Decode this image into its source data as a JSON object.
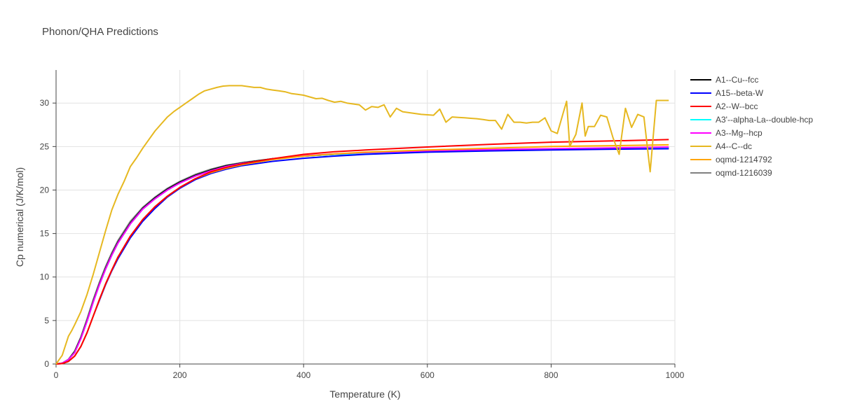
{
  "chart_data": {
    "type": "line",
    "title": "Phonon/QHA Predictions",
    "xlabel": "Temperature (K)",
    "ylabel": "Cp numerical (J/K/mol)",
    "xlim": [
      0,
      1000
    ],
    "ylim": [
      0,
      33.8
    ],
    "xticks": [
      0,
      200,
      400,
      600,
      800,
      1000
    ],
    "xtick_labels": [
      "0",
      "200",
      "400",
      "600",
      "800",
      "1000"
    ],
    "yticks": [
      0,
      5,
      10,
      15,
      20,
      25,
      30
    ],
    "ytick_labels": [
      "0",
      "5",
      "10",
      "15",
      "20",
      "25",
      "30"
    ],
    "grid": true,
    "legend_position": "right",
    "series": [
      {
        "name": "A1--Cu--fcc",
        "color": "#000000",
        "x": [
          0,
          10,
          20,
          30,
          40,
          50,
          60,
          70,
          80,
          90,
          100,
          120,
          140,
          160,
          180,
          200,
          225,
          250,
          275,
          300,
          350,
          400,
          450,
          500,
          600,
          700,
          800,
          900,
          990
        ],
        "y": [
          0,
          0.1,
          0.5,
          1.4,
          3.0,
          5.0,
          7.2,
          9.2,
          11.0,
          12.6,
          14.0,
          16.2,
          17.9,
          19.1,
          20.1,
          20.9,
          21.7,
          22.3,
          22.8,
          23.1,
          23.6,
          23.9,
          24.1,
          24.2,
          24.4,
          24.55,
          24.65,
          24.75,
          24.8
        ]
      },
      {
        "name": "A15--beta-W",
        "color": "#0000ff",
        "x": [
          0,
          10,
          20,
          30,
          40,
          50,
          60,
          70,
          80,
          90,
          100,
          120,
          140,
          160,
          180,
          200,
          225,
          250,
          275,
          300,
          350,
          400,
          450,
          500,
          600,
          700,
          800,
          900,
          990
        ],
        "y": [
          0,
          0.05,
          0.3,
          0.9,
          2.0,
          3.6,
          5.5,
          7.3,
          9.1,
          10.7,
          12.1,
          14.5,
          16.4,
          17.9,
          19.2,
          20.2,
          21.2,
          21.9,
          22.4,
          22.8,
          23.3,
          23.65,
          23.9,
          24.1,
          24.35,
          24.5,
          24.6,
          24.7,
          24.75
        ]
      },
      {
        "name": "A2--W--bcc",
        "color": "#ff0000",
        "x": [
          0,
          10,
          20,
          30,
          40,
          50,
          60,
          70,
          80,
          90,
          100,
          120,
          140,
          160,
          180,
          200,
          225,
          250,
          275,
          300,
          350,
          400,
          450,
          500,
          600,
          700,
          800,
          900,
          990
        ],
        "y": [
          0,
          0.05,
          0.3,
          0.9,
          2.0,
          3.6,
          5.5,
          7.4,
          9.2,
          10.8,
          12.3,
          14.7,
          16.6,
          18.1,
          19.3,
          20.3,
          21.3,
          22.1,
          22.6,
          23.0,
          23.6,
          24.1,
          24.4,
          24.6,
          24.95,
          25.25,
          25.5,
          25.65,
          25.8
        ]
      },
      {
        "name": "A3'--alpha-La--double-hcp",
        "color": "#00ffff",
        "x": [
          0,
          10,
          20,
          30,
          40,
          50,
          60,
          70,
          80,
          90,
          100,
          120,
          140,
          160,
          180,
          200,
          225,
          250,
          275,
          300,
          350,
          400,
          450,
          500,
          600,
          700,
          800,
          900,
          990
        ],
        "y": [
          0,
          0.1,
          0.5,
          1.3,
          2.9,
          4.9,
          7.1,
          9.1,
          10.9,
          12.5,
          13.9,
          16.1,
          17.8,
          19.0,
          20.0,
          20.8,
          21.6,
          22.2,
          22.7,
          23.05,
          23.55,
          23.9,
          24.1,
          24.2,
          24.4,
          24.55,
          24.65,
          24.75,
          24.85
        ]
      },
      {
        "name": "A3--Mg--hcp",
        "color": "#ff00ff",
        "x": [
          0,
          10,
          20,
          30,
          40,
          50,
          60,
          70,
          80,
          90,
          100,
          120,
          140,
          160,
          180,
          200,
          225,
          250,
          275,
          300,
          350,
          400,
          450,
          500,
          600,
          700,
          800,
          900,
          990
        ],
        "y": [
          0,
          0.1,
          0.5,
          1.3,
          2.9,
          4.9,
          7.1,
          9.1,
          10.9,
          12.5,
          13.9,
          16.1,
          17.8,
          19.0,
          20.0,
          20.8,
          21.6,
          22.2,
          22.7,
          23.05,
          23.55,
          23.95,
          24.15,
          24.3,
          24.5,
          24.65,
          24.75,
          24.85,
          24.95
        ]
      },
      {
        "name": "A4--C--dc",
        "color": "#e6b820",
        "x": [
          0,
          10,
          20,
          25,
          30,
          40,
          50,
          60,
          70,
          80,
          90,
          100,
          110,
          120,
          130,
          140,
          150,
          160,
          170,
          180,
          190,
          200,
          210,
          220,
          230,
          240,
          250,
          260,
          270,
          280,
          290,
          300,
          310,
          320,
          330,
          340,
          350,
          360,
          370,
          380,
          390,
          400,
          410,
          420,
          430,
          440,
          450,
          460,
          470,
          480,
          490,
          500,
          510,
          520,
          530,
          540,
          550,
          560,
          570,
          580,
          590,
          600,
          610,
          620,
          630,
          640,
          650,
          660,
          670,
          680,
          690,
          700,
          710,
          720,
          730,
          740,
          750,
          760,
          770,
          780,
          790,
          800,
          810,
          820,
          825,
          830,
          840,
          850,
          855,
          860,
          870,
          880,
          890,
          900,
          910,
          920,
          930,
          940,
          950,
          960,
          970,
          980,
          990
        ],
        "y": [
          0,
          1.0,
          3.2,
          3.8,
          4.5,
          6.0,
          8.0,
          10.3,
          12.8,
          15.3,
          17.7,
          19.5,
          21.0,
          22.7,
          23.7,
          24.8,
          25.8,
          26.8,
          27.6,
          28.4,
          29.0,
          29.5,
          30.0,
          30.5,
          31.0,
          31.4,
          31.6,
          31.8,
          31.95,
          32.0,
          32.0,
          32.0,
          31.9,
          31.8,
          31.8,
          31.6,
          31.5,
          31.4,
          31.3,
          31.1,
          31.0,
          30.9,
          30.7,
          30.5,
          30.55,
          30.3,
          30.1,
          30.2,
          30.0,
          29.9,
          29.8,
          29.2,
          29.6,
          29.5,
          29.8,
          28.4,
          29.4,
          29.0,
          28.9,
          28.8,
          28.7,
          28.65,
          28.6,
          29.3,
          27.8,
          28.4,
          28.35,
          28.3,
          28.25,
          28.2,
          28.1,
          28.0,
          28.0,
          27.0,
          28.7,
          27.8,
          27.8,
          27.7,
          27.8,
          27.8,
          28.3,
          26.8,
          26.5,
          29.0,
          30.2,
          25.0,
          26.4,
          30.0,
          26.2,
          27.3,
          27.3,
          28.6,
          28.4,
          26.0,
          24.1,
          29.4,
          27.2,
          28.7,
          28.4,
          22.1,
          30.3,
          30.3,
          30.3
        ]
      },
      {
        "name": "oqmd-1214792",
        "color": "#ffa500",
        "x": [
          0,
          10,
          20,
          30,
          40,
          50,
          60,
          70,
          80,
          90,
          100,
          120,
          140,
          160,
          180,
          200,
          225,
          250,
          275,
          300,
          350,
          400,
          450,
          500,
          600,
          700,
          800,
          900,
          990
        ],
        "y": [
          0,
          0.05,
          0.3,
          0.9,
          2.0,
          3.6,
          5.5,
          7.4,
          9.2,
          10.8,
          12.3,
          14.7,
          16.6,
          18.1,
          19.3,
          20.3,
          21.3,
          22.0,
          22.5,
          22.9,
          23.5,
          23.9,
          24.15,
          24.35,
          24.6,
          24.8,
          25.0,
          25.1,
          25.2
        ]
      },
      {
        "name": "oqmd-1216039",
        "color": "#808080",
        "x": [
          0,
          10,
          20,
          30,
          40,
          50,
          60,
          70,
          80,
          90,
          100,
          120,
          140,
          160,
          180,
          200,
          225,
          250,
          275,
          300,
          350,
          400,
          450,
          500,
          600,
          700,
          800,
          900,
          990
        ],
        "y": [
          0,
          0.1,
          0.55,
          1.5,
          3.1,
          5.2,
          7.4,
          9.4,
          11.2,
          12.8,
          14.2,
          16.4,
          18.0,
          19.2,
          20.2,
          21.0,
          21.8,
          22.4,
          22.85,
          23.15,
          23.6,
          23.9,
          24.1,
          24.2,
          24.4,
          24.55,
          24.65,
          24.75,
          24.85
        ]
      }
    ]
  }
}
